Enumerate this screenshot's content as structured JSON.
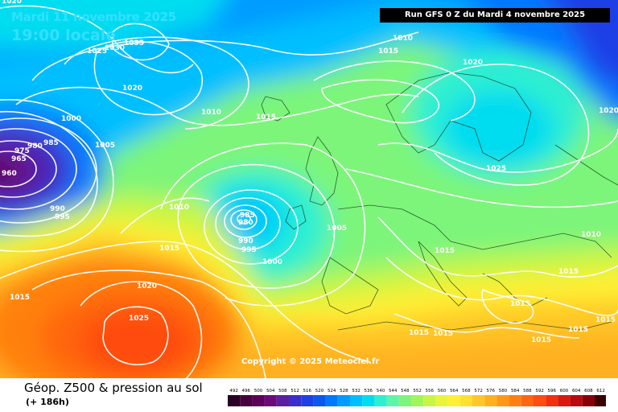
{
  "header": {
    "date_label": "Mardi 11 novembre 2025",
    "time_label": "19:00 locale",
    "run_label": "Run GFS 0 Z du Mardi 4 novembre 2025"
  },
  "copyright": "Copyright © 2025 Meteociel.fr",
  "footer": {
    "title": "Géop. Z500 & pression au sol",
    "subtitle": "(+ 186h)"
  },
  "scale": {
    "values": [
      "492",
      "496",
      "500",
      "504",
      "508",
      "512",
      "516",
      "520",
      "524",
      "528",
      "532",
      "536",
      "540",
      "544",
      "548",
      "552",
      "556",
      "560",
      "564",
      "568",
      "572",
      "576",
      "580",
      "584",
      "588",
      "592",
      "596",
      "600",
      "604",
      "608",
      "612"
    ],
    "colors": [
      "#2b0025",
      "#47003f",
      "#5e005a",
      "#6d0a7a",
      "#5a1fa0",
      "#3a2fcc",
      "#1f3fe6",
      "#0a58f0",
      "#0078ff",
      "#009cff",
      "#00bfff",
      "#00dcf0",
      "#2df0d0",
      "#5ff5a8",
      "#7cf57a",
      "#a0f55a",
      "#c8f545",
      "#e8f53a",
      "#fff035",
      "#ffe030",
      "#ffc828",
      "#ffb020",
      "#ff9818",
      "#ff8010",
      "#ff6610",
      "#ff4c10",
      "#f03010",
      "#d81a10",
      "#b80a10",
      "#880008",
      "#3a0000"
    ]
  },
  "isobars": [
    "1020",
    "1035",
    "1030",
    "1025",
    "1010",
    "1015",
    "1010",
    "1015",
    "1020",
    "1020",
    "1020",
    "1000",
    "1005",
    "985",
    "980",
    "975",
    "965",
    "960",
    "990",
    "995",
    "1010",
    "985",
    "980",
    "990",
    "995",
    "1000",
    "1005",
    "1015",
    "1025",
    "1010",
    "1015",
    "1015",
    "1015",
    "1015",
    "1015",
    "1015",
    "1015",
    "1020",
    "1025",
    "1015",
    "1015"
  ]
}
